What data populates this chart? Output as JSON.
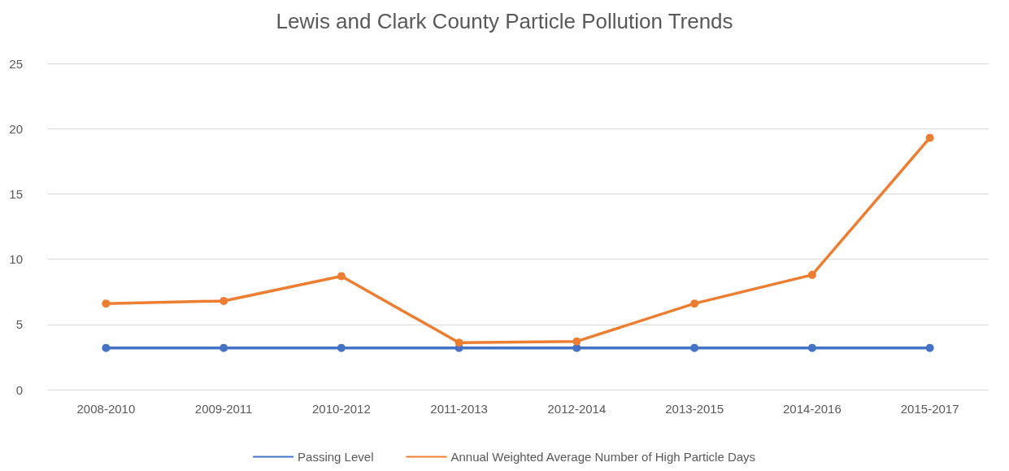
{
  "chart_data": {
    "type": "line",
    "title": "Lewis and Clark County Particle Pollution Trends",
    "categories": [
      "2008-2010",
      "2009-2011",
      "2010-2012",
      "2011-2013",
      "2012-2014",
      "2013-2015",
      "2014-2016",
      "2015-2017"
    ],
    "series": [
      {
        "name": "Passing Level",
        "color": "#4472c4",
        "values": [
          3.2,
          3.2,
          3.2,
          3.2,
          3.2,
          3.2,
          3.2,
          3.2
        ]
      },
      {
        "name": "Annual Weighted Average Number of High Particle Days",
        "color": "#ed7d31",
        "values": [
          6.6,
          6.8,
          8.7,
          3.6,
          3.7,
          6.6,
          8.8,
          19.3
        ]
      }
    ],
    "ylim": [
      0,
      25
    ],
    "yticks": [
      0,
      5,
      10,
      15,
      20,
      25
    ],
    "grid": "y",
    "legend": "bottom",
    "marker": "circle",
    "line_style": "solid"
  }
}
